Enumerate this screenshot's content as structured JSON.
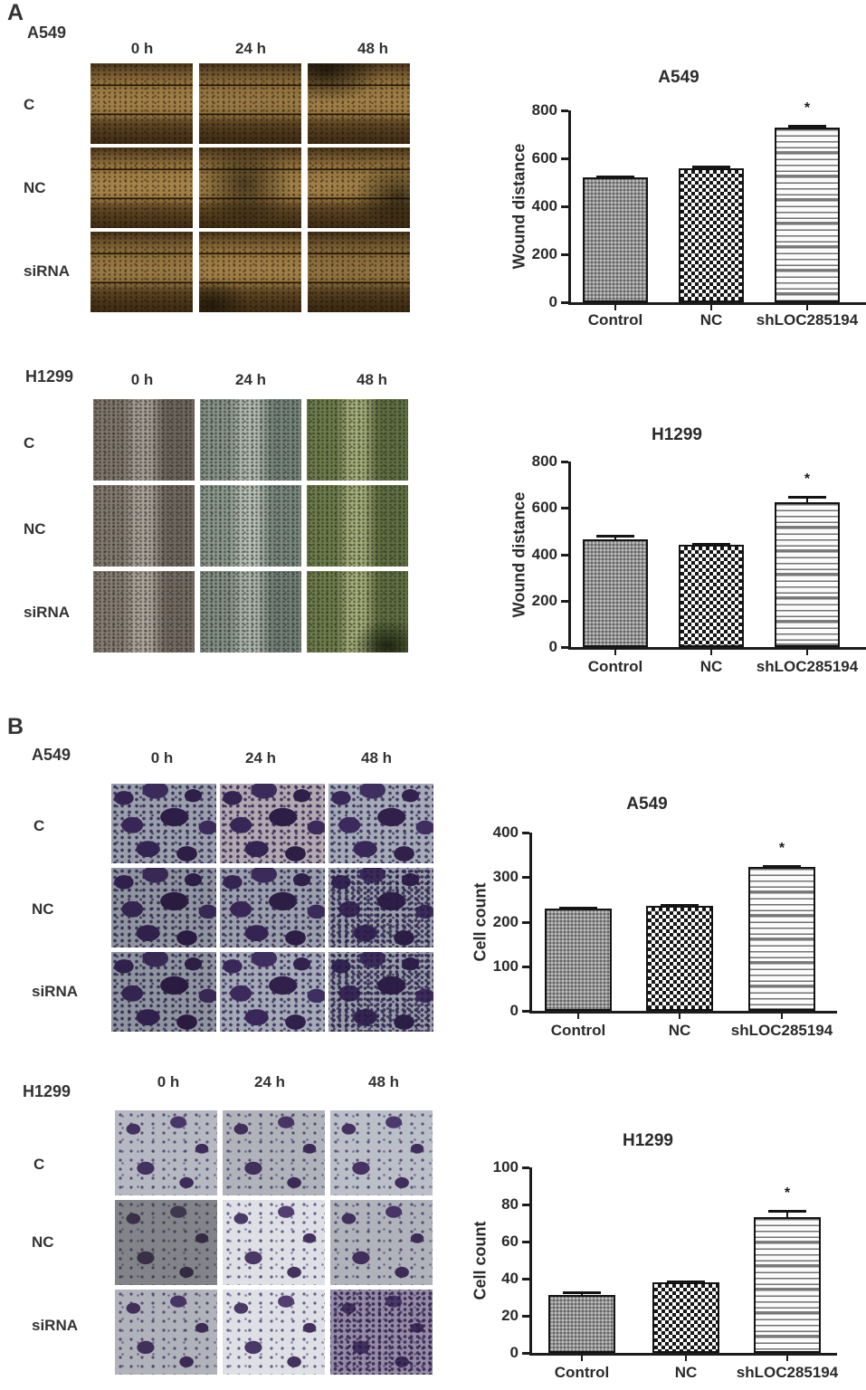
{
  "figure": {
    "panels": {
      "A": {
        "label": "A",
        "sections": [
          {
            "cell_line": "A549",
            "cols": [
              "0 h",
              "24 h",
              "48 h"
            ],
            "rows": [
              "C",
              "NC",
              "siRNA"
            ]
          },
          {
            "cell_line": "H1299",
            "cols": [
              "0 h",
              "24 h",
              "48 h"
            ],
            "rows": [
              "C",
              "NC",
              "siRNA"
            ]
          }
        ]
      },
      "B": {
        "label": "B",
        "sections": [
          {
            "cell_line": "A549",
            "cols": [
              "0 h",
              "24 h",
              "48 h"
            ],
            "rows": [
              "C",
              "NC",
              "siRNA"
            ]
          },
          {
            "cell_line": "H1299",
            "cols": [
              "0 h",
              "24 h",
              "48 h"
            ],
            "rows": [
              "C",
              "NC",
              "siRNA"
            ]
          }
        ]
      }
    }
  },
  "chart_data": [
    {
      "type": "bar",
      "panel": "A",
      "title": "A549",
      "xlabel": "",
      "ylabel": "Wound distance",
      "categories": [
        "Control",
        "NC",
        "shLOC285194"
      ],
      "values": [
        520,
        560,
        730
      ],
      "errors": [
        8,
        10,
        8
      ],
      "significance": [
        "",
        "",
        "*"
      ],
      "ylim": [
        0,
        800
      ],
      "yticks": [
        0,
        200,
        400,
        600,
        800
      ],
      "grid": false,
      "legend": "none",
      "bar_patterns": [
        "gray-dots",
        "checkerboard",
        "horizontal-stripes"
      ]
    },
    {
      "type": "bar",
      "panel": "A",
      "title": "H1299",
      "xlabel": "",
      "ylabel": "Wound distance",
      "categories": [
        "Control",
        "NC",
        "shLOC285194"
      ],
      "values": [
        465,
        440,
        625
      ],
      "errors": [
        18,
        10,
        25
      ],
      "significance": [
        "",
        "",
        "*"
      ],
      "ylim": [
        0,
        800
      ],
      "yticks": [
        0,
        200,
        400,
        600,
        800
      ],
      "grid": false,
      "legend": "none",
      "bar_patterns": [
        "gray-dots",
        "checkerboard",
        "horizontal-stripes"
      ]
    },
    {
      "type": "bar",
      "panel": "B",
      "title": "A549",
      "xlabel": "",
      "ylabel": "Cell count",
      "categories": [
        "Control",
        "NC",
        "shLOC285194"
      ],
      "values": [
        230,
        235,
        322
      ],
      "errors": [
        4,
        5,
        4
      ],
      "significance": [
        "",
        "",
        "*"
      ],
      "ylim": [
        0,
        400
      ],
      "yticks": [
        0,
        100,
        200,
        300,
        400
      ],
      "grid": false,
      "legend": "none",
      "bar_patterns": [
        "gray-dots",
        "checkerboard",
        "horizontal-stripes"
      ]
    },
    {
      "type": "bar",
      "panel": "B",
      "title": "H1299",
      "xlabel": "",
      "ylabel": "Cell count",
      "categories": [
        "Control",
        "NC",
        "shLOC285194"
      ],
      "values": [
        31,
        38,
        73
      ],
      "errors": [
        2,
        1,
        4
      ],
      "significance": [
        "",
        "",
        "*"
      ],
      "ylim": [
        0,
        100
      ],
      "yticks": [
        0,
        20,
        40,
        60,
        80,
        100
      ],
      "grid": false,
      "legend": "none",
      "bar_patterns": [
        "gray-dots",
        "checkerboard",
        "horizontal-stripes"
      ]
    }
  ]
}
